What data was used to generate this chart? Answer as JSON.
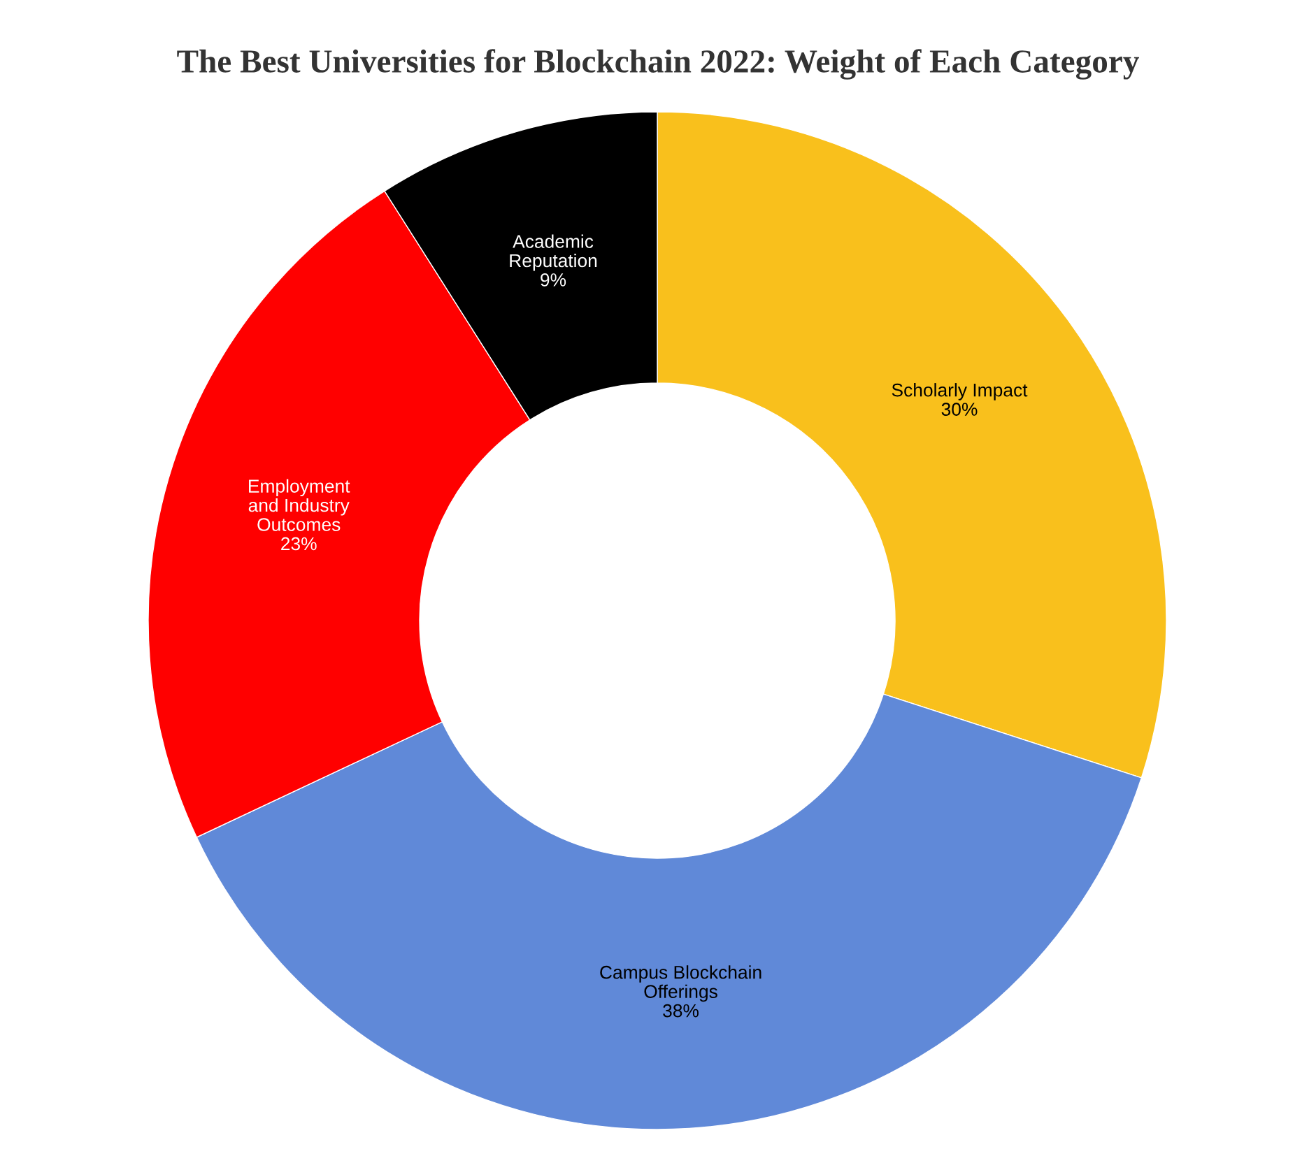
{
  "chart_data": {
    "type": "donut",
    "title": "The Best Universities for Blockchain 2022: Weight of Each Category",
    "categories": [
      "Scholarly Impact",
      "Campus Blockchain\nOfferings",
      "Employment\nand Industry\nOutcomes",
      "Academic\nReputation"
    ],
    "values": [
      30,
      38,
      23,
      9
    ],
    "colors": [
      "#f9c01c",
      "#6089d8",
      "#ff0000",
      "#000000"
    ],
    "value_labels": [
      "30%",
      "38%",
      "23%",
      "9%"
    ]
  }
}
